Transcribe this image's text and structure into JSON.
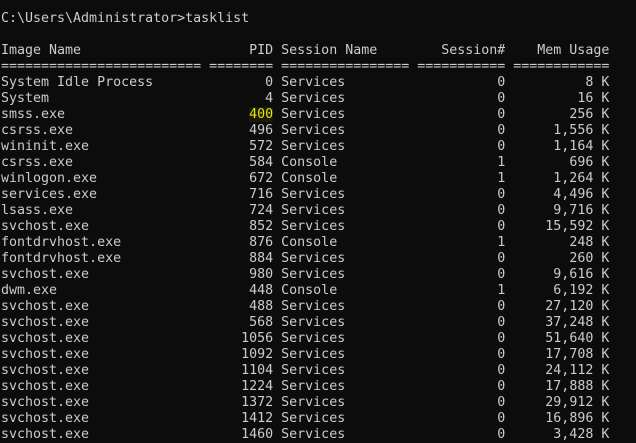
{
  "console": {
    "prompt": "C:\\Users\\Administrator>tasklist",
    "text_color": "#cccccc",
    "background": "#0c0c0c",
    "highlight_color": "#e5e510",
    "headers": [
      "Image Name",
      "PID",
      "Session Name",
      "Session#",
      "Mem Usage"
    ],
    "separators": [
      "=========================",
      "========",
      "================",
      "===========",
      "============"
    ],
    "rows": [
      [
        "System Idle Process",
        "0",
        "Services",
        "0",
        "8 K"
      ],
      [
        "System",
        "4",
        "Services",
        "0",
        "16 K"
      ],
      [
        "smss.exe",
        "400",
        "Services",
        "0",
        "256 K"
      ],
      [
        "csrss.exe",
        "496",
        "Services",
        "0",
        "1,556 K"
      ],
      [
        "wininit.exe",
        "572",
        "Services",
        "0",
        "1,164 K"
      ],
      [
        "csrss.exe",
        "584",
        "Console",
        "1",
        "696 K"
      ],
      [
        "winlogon.exe",
        "672",
        "Console",
        "1",
        "1,264 K"
      ],
      [
        "services.exe",
        "716",
        "Services",
        "0",
        "4,496 K"
      ],
      [
        "lsass.exe",
        "724",
        "Services",
        "0",
        "9,716 K"
      ],
      [
        "svchost.exe",
        "852",
        "Services",
        "0",
        "15,592 K"
      ],
      [
        "fontdrvhost.exe",
        "876",
        "Console",
        "1",
        "248 K"
      ],
      [
        "fontdrvhost.exe",
        "884",
        "Services",
        "0",
        "260 K"
      ],
      [
        "svchost.exe",
        "980",
        "Services",
        "0",
        "9,616 K"
      ],
      [
        "dwm.exe",
        "448",
        "Console",
        "1",
        "6,192 K"
      ],
      [
        "svchost.exe",
        "488",
        "Services",
        "0",
        "27,120 K"
      ],
      [
        "svchost.exe",
        "568",
        "Services",
        "0",
        "37,248 K"
      ],
      [
        "svchost.exe",
        "1056",
        "Services",
        "0",
        "51,640 K"
      ],
      [
        "svchost.exe",
        "1092",
        "Services",
        "0",
        "17,708 K"
      ],
      [
        "svchost.exe",
        "1104",
        "Services",
        "0",
        "24,112 K"
      ],
      [
        "svchost.exe",
        "1224",
        "Services",
        "0",
        "17,888 K"
      ],
      [
        "svchost.exe",
        "1372",
        "Services",
        "0",
        "29,912 K"
      ],
      [
        "svchost.exe",
        "1412",
        "Services",
        "0",
        "16,896 K"
      ],
      [
        "svchost.exe",
        "1460",
        "Services",
        "0",
        "3,428 K"
      ]
    ],
    "highlighted_cell": {
      "row": 2,
      "column": 1
    }
  }
}
